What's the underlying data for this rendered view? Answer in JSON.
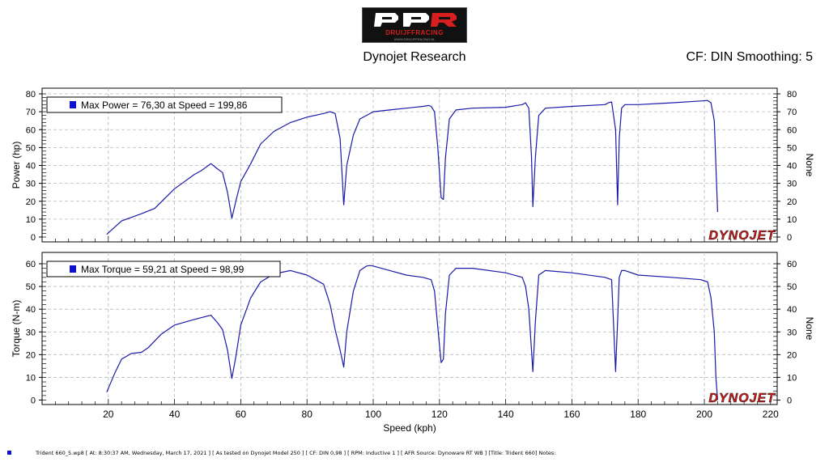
{
  "header": {
    "logo_text": "DRUIJFFRACING",
    "logo_subtext": "WWW.DRUIJFFRACING.NL",
    "title": "Dynojet Research",
    "cf_text": "CF: DIN Smoothing: 5"
  },
  "watermark": "DYNOJET",
  "colors": {
    "series": "#1a1aa8",
    "legend_marker": "#1010d0",
    "watermark_red": "#d11a1a"
  },
  "footer": "Trident 660_5.wp8 [ At: 8:30:37 AM, Wednesday, March 17, 2021 ] [ As tested on Dynojet Model 250 ] [ CF: DIN 0,98 ] [ RPM: Inductive 1 ] [ AFR Source: Dynoware RT WB ] [Title: Trident 660]  Notes:",
  "chart_data": [
    {
      "type": "line",
      "ylabel": "Power (hp)",
      "ylabel_right": "None",
      "xlim": [
        0,
        222
      ],
      "ylim": [
        0,
        82
      ],
      "y_ticks": [
        0,
        10,
        20,
        30,
        40,
        50,
        60,
        70,
        80
      ],
      "grid": true,
      "legend": "Max Power = 76,30 at Speed = 199,86",
      "legend_position": "top-left",
      "series": [
        {
          "x": [
            19.5,
            24,
            30,
            34,
            40,
            46,
            48,
            51,
            53,
            54.5,
            56,
            57.3,
            58.5,
            60,
            63,
            66,
            70,
            75,
            80,
            85,
            87,
            88.5,
            90,
            91.1,
            92,
            94,
            96,
            98,
            100,
            105,
            110,
            115,
            116.8,
            117.5,
            118.5,
            119.5,
            120.5,
            121.2,
            121.8,
            123,
            125,
            130,
            140,
            145,
            146,
            147,
            147.8,
            148.2,
            149,
            150,
            152,
            160,
            170,
            171,
            172,
            173.2,
            173.8,
            174.3,
            175,
            176,
            180,
            190,
            199,
            201,
            202,
            203,
            203.5,
            204
          ],
          "y": [
            1.5,
            9,
            13,
            16,
            27,
            35,
            37,
            41,
            38,
            36,
            25,
            10.5,
            20,
            31,
            41,
            52,
            59,
            64,
            67,
            69,
            70,
            69,
            55,
            18,
            40,
            57,
            66,
            68,
            70,
            71,
            72,
            73,
            73.5,
            73,
            70,
            50,
            22,
            21,
            44,
            66,
            71,
            72,
            72.5,
            74,
            75,
            72,
            45,
            17,
            45,
            68,
            72,
            73,
            74,
            75,
            75.5,
            60,
            18,
            55,
            72,
            74,
            74,
            75,
            76,
            76.3,
            75,
            65,
            40,
            14
          ]
        }
      ]
    },
    {
      "type": "line",
      "ylabel": "Torque (N-m)",
      "ylabel_right": "None",
      "xlabel": "Speed (kph)",
      "xlim": [
        0,
        222
      ],
      "ylim": [
        0,
        64
      ],
      "x_ticks": [
        20,
        40,
        60,
        80,
        100,
        120,
        140,
        160,
        180,
        200,
        220
      ],
      "y_ticks": [
        0,
        10,
        20,
        30,
        40,
        50,
        60
      ],
      "grid": true,
      "legend": "Max Torque = 59,21 at Speed = 98,99",
      "legend_position": "top-left",
      "series": [
        {
          "x": [
            19.5,
            22,
            24,
            27,
            30,
            32,
            36,
            40,
            46,
            50,
            51,
            53,
            54.5,
            56,
            57.3,
            58.5,
            60,
            63,
            66,
            70,
            75,
            80,
            85,
            87,
            88.5,
            90,
            91.1,
            92,
            94,
            96,
            98,
            99,
            100,
            105,
            110,
            115,
            117.5,
            118.5,
            119.5,
            120.5,
            121.2,
            121.8,
            123,
            125,
            130,
            140,
            145,
            146,
            147,
            147.8,
            148.2,
            149,
            150,
            152,
            160,
            170,
            172,
            173.2,
            173.8,
            174.3,
            175,
            176,
            180,
            190,
            199,
            201,
            202,
            203,
            203.5,
            204
          ],
          "y": [
            3.5,
            12,
            18,
            20.5,
            21,
            23,
            29,
            33,
            35.5,
            37,
            37.3,
            34,
            31,
            22,
            9.5,
            19,
            33,
            45,
            52,
            55.5,
            57,
            55,
            51,
            42,
            31,
            22,
            14.5,
            30,
            48,
            57,
            59,
            59.2,
            59,
            57,
            55,
            54,
            53,
            48,
            32,
            16.5,
            18,
            38,
            55,
            58,
            58,
            56,
            54,
            50,
            40,
            22,
            12.5,
            35,
            55,
            57,
            56,
            54,
            53,
            12.5,
            35,
            54,
            57,
            57,
            55,
            54,
            53,
            52,
            45,
            30,
            10,
            0
          ]
        }
      ]
    }
  ]
}
